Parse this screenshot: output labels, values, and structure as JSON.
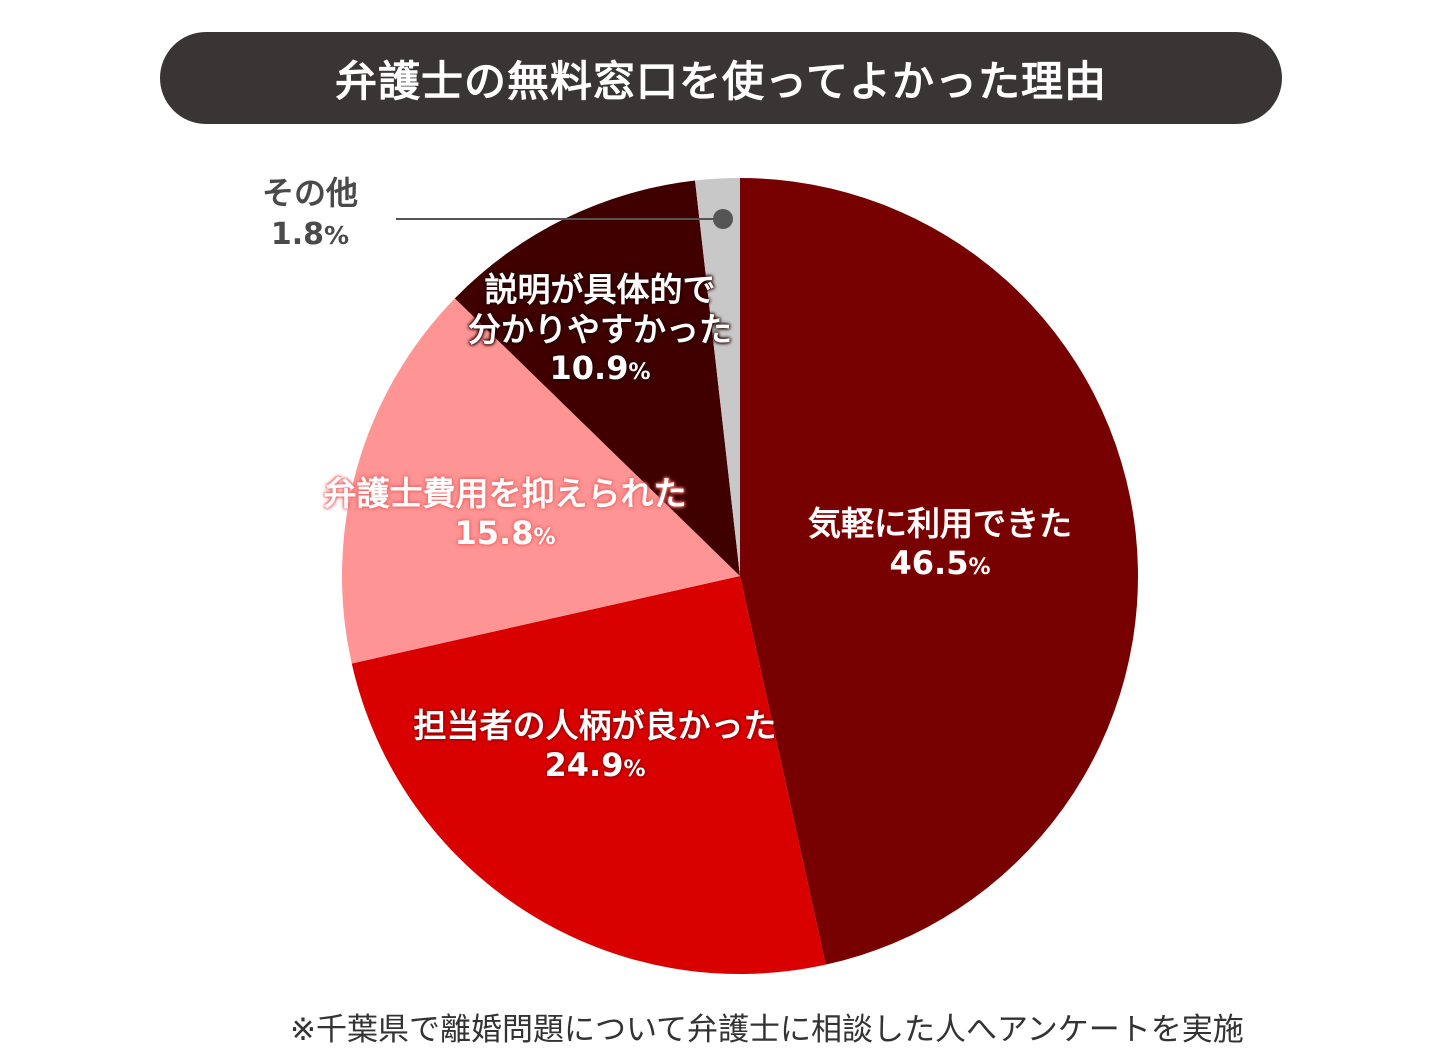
{
  "header": {
    "title": "弁護士の無料窓口を使ってよかった理由"
  },
  "footnote": "※千葉県で離婚問題について弁護士に相談した人へアンケートを実施",
  "slices": [
    {
      "label": "気軽に利用できた",
      "pct": "46.5",
      "color": "#770000"
    },
    {
      "label": "担当者の人柄が良かった",
      "pct": "24.9",
      "color": "#d90000"
    },
    {
      "label": "弁護士費用を抑えられた",
      "pct": "15.8",
      "color": "#ff9494"
    },
    {
      "label_line1": "説明が具体的で",
      "label_line2": "分かりやすかった",
      "pct": "10.9",
      "color": "#400000"
    },
    {
      "label": "その他",
      "pct": "1.8",
      "color": "#c8c8c8"
    }
  ],
  "percent_sign": "%",
  "chart_data": {
    "type": "pie",
    "title": "弁護士の無料窓口を使ってよかった理由",
    "categories": [
      "気軽に利用できた",
      "担当者の人柄が良かった",
      "弁護士費用を抑えられた",
      "説明が具体的で分かりやすかった",
      "その他"
    ],
    "values": [
      46.5,
      24.9,
      15.8,
      10.9,
      1.8
    ],
    "unit": "%",
    "colors": [
      "#770000",
      "#d90000",
      "#ff9494",
      "#400000",
      "#c8c8c8"
    ],
    "start_angle": "12 o'clock",
    "direction": "clockwise",
    "annotations": [
      "※千葉県で離婚問題について弁護士に相談した人へアンケートを実施"
    ],
    "legend": "none (labels inside slices; その他 with leader line)"
  }
}
